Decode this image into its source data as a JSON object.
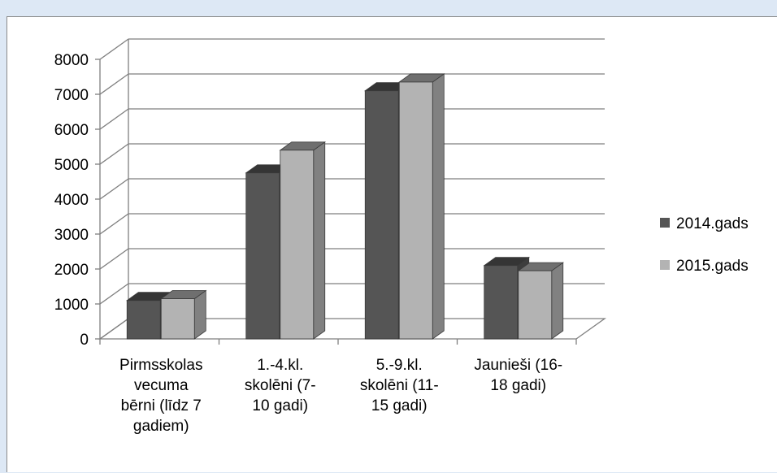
{
  "chart_data": {
    "type": "bar",
    "categories": [
      [
        "Pirmsskolas",
        "vecuma",
        "bērni (līdz 7",
        "gadiem)"
      ],
      [
        "1.-4.kl.",
        "skolēni (7-",
        "10 gadi)"
      ],
      [
        "5.-9.kl.",
        "skolēni (11-",
        "15 gadi)"
      ],
      [
        "Jaunieši (16-",
        "18 gadi)"
      ]
    ],
    "series": [
      {
        "name": "2014.gads",
        "values": [
          1100,
          4750,
          7100,
          2100
        ],
        "color": "#555555"
      },
      {
        "name": "2015.gads",
        "values": [
          1150,
          5400,
          7350,
          1950
        ],
        "color": "#b3b3b3"
      }
    ],
    "yticks": [
      "0",
      "1000",
      "2000",
      "3000",
      "4000",
      "5000",
      "6000",
      "7000",
      "8000"
    ],
    "ylim": [
      0,
      8000
    ],
    "grid": true,
    "legend_position": "right",
    "style": "3d-clustered-column"
  }
}
